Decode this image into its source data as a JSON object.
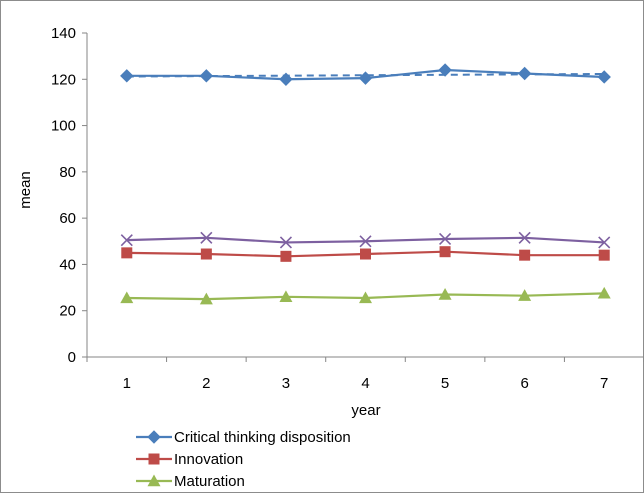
{
  "chart_data": {
    "type": "line",
    "title": "",
    "xlabel": "year",
    "ylabel": "mean",
    "categories": [
      "1",
      "2",
      "3",
      "4",
      "5",
      "6",
      "7"
    ],
    "ylim": [
      0,
      140
    ],
    "yticks": [
      "0",
      "20",
      "40",
      "60",
      "80",
      "100",
      "120",
      "140"
    ],
    "grid": false,
    "legend_position": "bottom",
    "series": [
      {
        "name": "Critical thinking disposition",
        "color": "#4a7ebb",
        "marker": "diamond",
        "values": [
          121.5,
          121.5,
          120,
          120.5,
          124,
          122.5,
          121
        ]
      },
      {
        "name": "Innovation",
        "color": "#be4b48",
        "marker": "square",
        "values": [
          45,
          44.5,
          43.5,
          44.5,
          45.5,
          44,
          44
        ]
      },
      {
        "name": "Maturation",
        "color": "#98b954",
        "marker": "triangle",
        "values": [
          25.5,
          25,
          26,
          25.5,
          27,
          26.5,
          27.5
        ]
      },
      {
        "name": "",
        "color": "#7d60a0",
        "marker": "x",
        "values": [
          50.5,
          51.5,
          49.5,
          50,
          51,
          51.5,
          49.5
        ]
      }
    ],
    "trendline": {
      "color": "#4a7ebb",
      "style": "dashed",
      "from": 121.2,
      "to": 122.3
    }
  }
}
